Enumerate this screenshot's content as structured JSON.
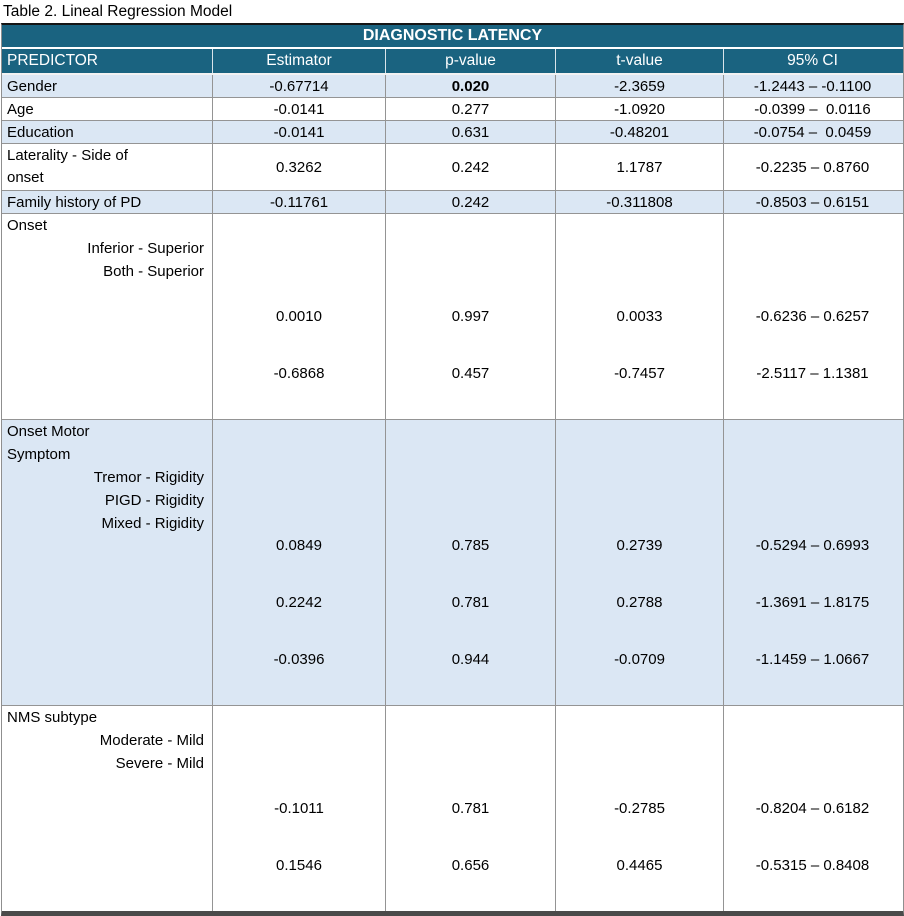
{
  "doc": {
    "title": "Table 2. Lineal Regression Model"
  },
  "colors": {
    "header_bg": "#1A6380",
    "shaded_row_bg": "#DBE7F4",
    "grid_line": "#949494",
    "header_text": "#ffffff",
    "body_text": "#000000"
  },
  "table": {
    "banner": "DIAGNOSTIC LATENCY",
    "columns": [
      "PREDICTOR",
      "Estimator",
      "p-value",
      "t-value",
      "95% CI"
    ],
    "rows": [
      {
        "predictor": "Gender",
        "estimator": "-0.67714",
        "p_value": "0.020",
        "t_value": "-2.3659",
        "ci": "-1.2443 – -0.1100"
      },
      {
        "predictor": "Age",
        "estimator": "-0.0141",
        "p_value": "0.277",
        "t_value": "-1.0920",
        "ci": "-0.0399 –  0.0116"
      },
      {
        "predictor": "Education",
        "estimator": "-0.0141",
        "p_value": "0.631",
        "t_value": "-0.48201",
        "ci": "-0.0754 –  0.0459"
      },
      {
        "predictor": "Laterality - Side of onset",
        "estimator": "0.3262",
        "p_value": "0.242",
        "t_value": "1.1787",
        "ci": "-0.2235 – 0.8760"
      },
      {
        "predictor": "Family history of PD",
        "estimator": "-0.11761",
        "p_value": "0.242",
        "t_value": "-0.311808",
        "ci": "-0.8503 – 0.6151"
      }
    ],
    "groups": [
      {
        "label_lines": [
          "Onset"
        ],
        "subrows": [
          {
            "label": "Inferior - Superior",
            "estimator": "0.0010",
            "p_value": "0.997",
            "t_value": "0.0033",
            "ci": "-0.6236 – 0.6257"
          },
          {
            "label": "Both - Superior",
            "estimator": "-0.6868",
            "p_value": "0.457",
            "t_value": "-0.7457",
            "ci": "-2.5117 – 1.1381"
          }
        ]
      },
      {
        "label_lines": [
          "Onset Motor",
          "Symptom"
        ],
        "subrows": [
          {
            "label": "Tremor - Rigidity",
            "estimator": "0.0849",
            "p_value": "0.785",
            "t_value": "0.2739",
            "ci": "-0.5294 – 0.6993"
          },
          {
            "label": "PIGD - Rigidity",
            "estimator": "0.2242",
            "p_value": "0.781",
            "t_value": "0.2788",
            "ci": "-1.3691 – 1.8175"
          },
          {
            "label": "Mixed - Rigidity",
            "estimator": "-0.0396",
            "p_value": "0.944",
            "t_value": "-0.0709",
            "ci": "-1.1459 – 1.0667"
          }
        ]
      },
      {
        "label_lines": [
          "NMS subtype"
        ],
        "subrows": [
          {
            "label": "Moderate - Mild",
            "estimator": "-0.1011",
            "p_value": "0.781",
            "t_value": "-0.2785",
            "ci": "-0.8204 – 0.6182"
          },
          {
            "label": "Severe - Mild",
            "estimator": "0.1546",
            "p_value": "0.656",
            "t_value": "0.4465",
            "ci": "-0.5315 – 0.8408"
          }
        ]
      }
    ]
  }
}
